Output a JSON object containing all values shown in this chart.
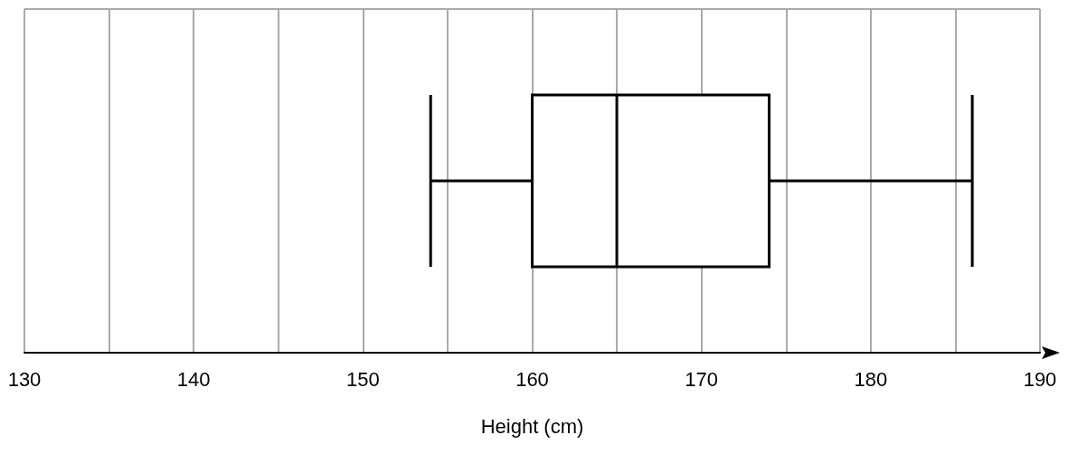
{
  "chart_data": {
    "type": "box",
    "orientation": "horizontal",
    "xlabel": "Height (cm)",
    "categories": [
      null
    ],
    "boxes": [
      {
        "low": 154,
        "q1": 160,
        "median": 165,
        "q3": 174,
        "high": 186
      }
    ],
    "xlim": [
      130,
      190
    ],
    "xticks": [
      130,
      {
        "value": 135,
        "label": null
      },
      140,
      {
        "value": 145,
        "label": null
      },
      150,
      {
        "value": 155,
        "label": null
      },
      160,
      {
        "value": 165,
        "label": null
      },
      170,
      {
        "value": 175,
        "label": null
      },
      180,
      {
        "value": 185,
        "label": null
      },
      190
    ],
    "grid": true,
    "tick_labels": "x"
  }
}
